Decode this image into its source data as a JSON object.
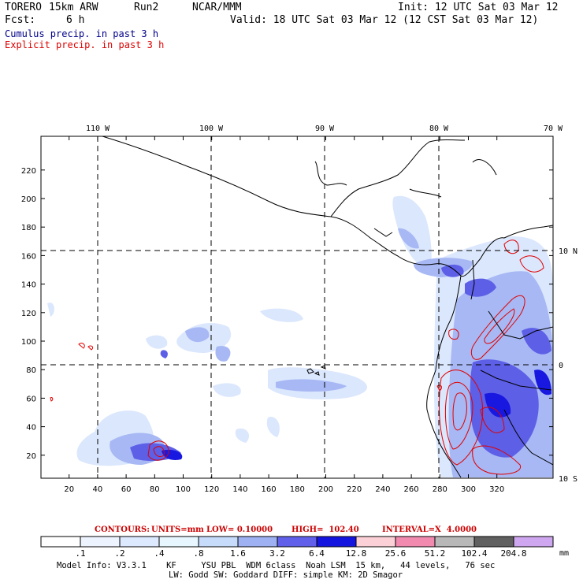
{
  "header": {
    "model": "TORERO",
    "resolution": "15km ARW",
    "run": "Run2",
    "org": "NCAR/MMM",
    "init": "Init: 12 UTC Sat 03 Mar 12",
    "fcst_label": "Fcst:",
    "fcst_value": "6 h",
    "valid": "Valid: 18 UTC Sat 03 Mar 12 (12 CST Sat 03 Mar 12)"
  },
  "legend": {
    "cumulus": "Cumulus precip. in past 3 h",
    "explicit": "Explicit precip. in past 3 h",
    "cumulus_color": "#000088",
    "explicit_color": "#dd0000"
  },
  "map": {
    "lon_labels": [
      "110 W",
      "100 W",
      "90 W",
      "80 W",
      "70 W"
    ],
    "lat_labels": [
      "10 N",
      "0",
      "10 S"
    ],
    "x_ticks": [
      "20",
      "40",
      "60",
      "80",
      "100",
      "120",
      "140",
      "160",
      "180",
      "200",
      "220",
      "240",
      "260",
      "280",
      "300",
      "320"
    ],
    "y_ticks": [
      "20",
      "40",
      "60",
      "80",
      "100",
      "120",
      "140",
      "160",
      "180",
      "200",
      "220"
    ]
  },
  "contour_info": {
    "contours": "CONTOURS:",
    "units": "UNITS=mm",
    "low": "LOW= 0.10000",
    "high": "HIGH=  102.40",
    "interval": "INTERVAL=X  4.0000"
  },
  "colorbar": {
    "labels": [
      ".1",
      ".2",
      ".4",
      ".8",
      "1.6",
      "3.2",
      "6.4",
      "12.8",
      "25.6",
      "51.2",
      "102.4",
      "204.8"
    ],
    "unit": "mm",
    "colors": [
      "#ffffff",
      "#eef4ff",
      "#dde9ff",
      "#e8f7ff",
      "#c7dbfb",
      "#9eb1f2",
      "#6060ea",
      "#1515e0",
      "#fbd0d6",
      "#f28ab0",
      "#b8b8b8",
      "#606060",
      "#cfa7f0"
    ]
  },
  "model_info": {
    "line1": "Model Info: V3.3.1    KF     YSU PBL  WDM 6class  Noah LSM  15 km,   44 levels,   76 sec",
    "line2": "LW: Godd SW: Goddard DIFF: simple KM: 2D Smagor"
  }
}
